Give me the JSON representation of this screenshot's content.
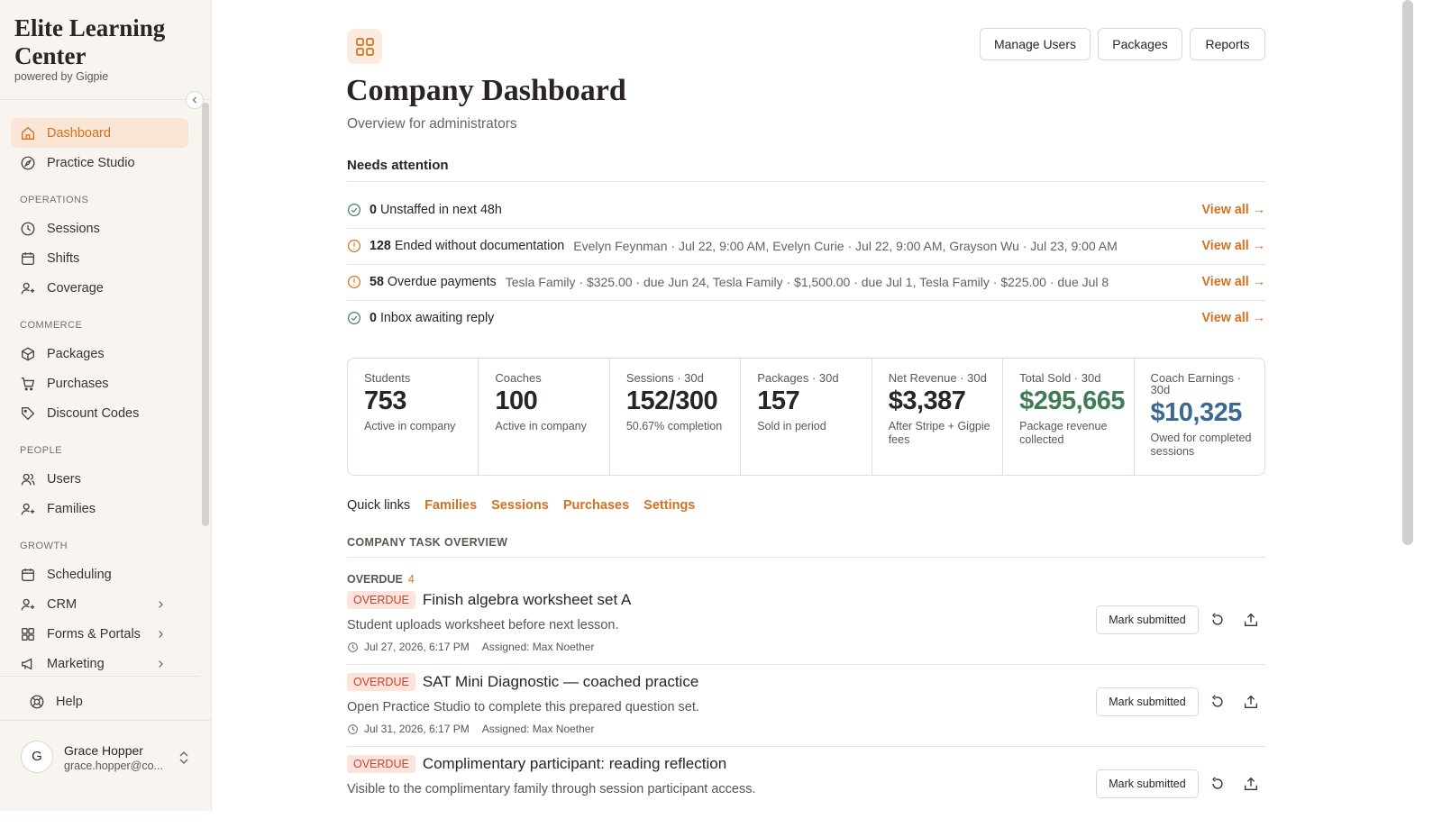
{
  "sidebar": {
    "brand": "Elite Learning Center",
    "powered": "powered by Gigpie",
    "nav": [
      {
        "label": "Dashboard",
        "icon": "home",
        "active": true
      },
      {
        "label": "Practice Studio",
        "icon": "compass"
      }
    ],
    "sections": [
      {
        "title": "OPERATIONS",
        "items": [
          {
            "label": "Sessions",
            "icon": "clock"
          },
          {
            "label": "Shifts",
            "icon": "calendar"
          },
          {
            "label": "Coverage",
            "icon": "user"
          }
        ]
      },
      {
        "title": "COMMERCE",
        "items": [
          {
            "label": "Packages",
            "icon": "box"
          },
          {
            "label": "Purchases",
            "icon": "cart"
          },
          {
            "label": "Discount Codes",
            "icon": "tag"
          }
        ]
      },
      {
        "title": "PEOPLE",
        "items": [
          {
            "label": "Users",
            "icon": "users"
          },
          {
            "label": "Families",
            "icon": "user"
          }
        ]
      },
      {
        "title": "GROWTH",
        "items": [
          {
            "label": "Scheduling",
            "icon": "calendar"
          },
          {
            "label": "CRM",
            "icon": "user",
            "expandable": true
          },
          {
            "label": "Forms & Portals",
            "icon": "grid",
            "expandable": true
          },
          {
            "label": "Marketing",
            "icon": "megaphone",
            "expandable": true
          }
        ]
      }
    ],
    "help": "Help",
    "user": {
      "initial": "G",
      "name": "Grace Hopper",
      "email": "grace.hopper@co..."
    }
  },
  "header": {
    "buttons": [
      "Manage Users",
      "Packages",
      "Reports"
    ],
    "title": "Company Dashboard",
    "subtitle": "Overview for administrators"
  },
  "attention": {
    "title": "Needs attention",
    "link": "View all →",
    "rows": [
      {
        "icon": "check",
        "count": 0,
        "label": "Unstaffed in next 48h"
      },
      {
        "icon": "alert",
        "count": 128,
        "label": "Ended without documentation",
        "detail": "Evelyn Feynman · Jul 22, 9:00 AM, Evelyn Curie · Jul 22, 9:00 AM, Grayson Wu · Jul 23, 9:00 AM"
      },
      {
        "icon": "alert",
        "count": 58,
        "label": "Overdue payments",
        "detail": "Tesla Family · $325.00 · due Jun 24, Tesla Family · $1,500.00 · due Jul 1, Tesla Family · $225.00 · due Jul 8"
      },
      {
        "icon": "check",
        "count": 0,
        "label": "Inbox awaiting reply"
      }
    ]
  },
  "stats": [
    {
      "label": "Students",
      "value": "753",
      "note": "Active in company"
    },
    {
      "label": "Coaches",
      "value": "100",
      "note": "Active in company"
    },
    {
      "label": "Sessions · 30d",
      "value": "152/300",
      "note": "50.67% completion"
    },
    {
      "label": "Packages · 30d",
      "value": "157",
      "note": "Sold in period"
    },
    {
      "label": "Net Revenue · 30d",
      "value": "$3,387",
      "note": "After Stripe + Gigpie fees"
    },
    {
      "label": "Total Sold · 30d",
      "value": "$295,665",
      "note": "Package revenue collected",
      "color": "#3f7d57"
    },
    {
      "label": "Coach Earnings · 30d",
      "value": "$10,325",
      "note": "Owed for completed sessions",
      "color": "#3b6890"
    }
  ],
  "quick_links": {
    "label": "Quick links",
    "links": [
      "Families",
      "Sessions",
      "Purchases",
      "Settings"
    ]
  },
  "tasks": {
    "title": "COMPANY TASK OVERVIEW",
    "group": "OVERDUE",
    "count": 4,
    "action": "Mark submitted",
    "items": [
      {
        "badge": "OVERDUE",
        "title": "Finish algebra worksheet set A",
        "description": "Student uploads worksheet before next lesson.",
        "date": "Jul 27, 2026, 6:17 PM",
        "assigned": "Assigned: Max Noether"
      },
      {
        "badge": "OVERDUE",
        "title": "SAT Mini Diagnostic — coached practice",
        "description": "Open Practice Studio to complete this prepared question set.",
        "date": "Jul 31, 2026, 6:17 PM",
        "assigned": "Assigned: Max Noether"
      },
      {
        "badge": "OVERDUE",
        "title": "Complimentary participant: reading reflection",
        "description": "Visible to the complimentary family through session participant access."
      }
    ]
  }
}
